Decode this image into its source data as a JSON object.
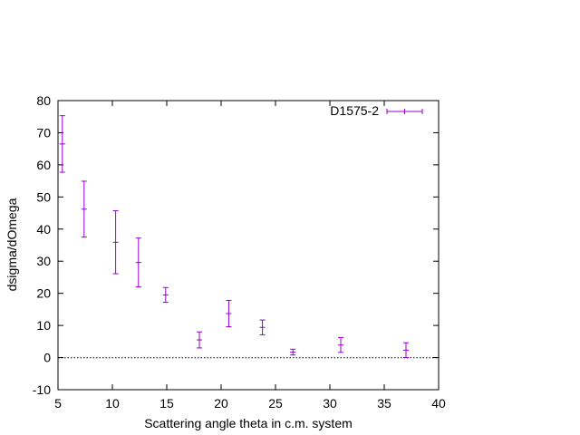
{
  "chart_data": {
    "type": "scatter",
    "title": "",
    "xlabel": "Scattering angle theta in c.m. system",
    "ylabel": "dsigma/dOmega",
    "xlim": [
      5,
      40
    ],
    "ylim": [
      -10,
      80
    ],
    "x_ticks": [
      "5",
      "10",
      "15",
      "20",
      "25",
      "30",
      "35",
      "40"
    ],
    "y_ticks": [
      "-10",
      "0",
      "10",
      "20",
      "30",
      "40",
      "50",
      "60",
      "70",
      "80"
    ],
    "grid": false,
    "zero_line": true,
    "legend_position": "top-right",
    "series": [
      {
        "name": "D1575-2",
        "color": "#9400d3",
        "points": [
          {
            "x": 5.4,
            "y": 66.5,
            "err": 8.8
          },
          {
            "x": 7.4,
            "y": 46.2,
            "err": 8.7
          },
          {
            "x": 10.3,
            "y": 35.9,
            "err": 9.8
          },
          {
            "x": 12.4,
            "y": 29.6,
            "err": 7.6
          },
          {
            "x": 14.9,
            "y": 19.5,
            "err": 2.3
          },
          {
            "x": 18.0,
            "y": 5.5,
            "err": 2.5
          },
          {
            "x": 20.7,
            "y": 13.7,
            "err": 4.1
          },
          {
            "x": 23.8,
            "y": 9.4,
            "err": 2.3
          },
          {
            "x": 26.6,
            "y": 1.7,
            "err": 0.9
          },
          {
            "x": 31.0,
            "y": 3.9,
            "err": 2.3
          },
          {
            "x": 37.0,
            "y": 2.3,
            "err": 2.3
          }
        ]
      }
    ]
  }
}
